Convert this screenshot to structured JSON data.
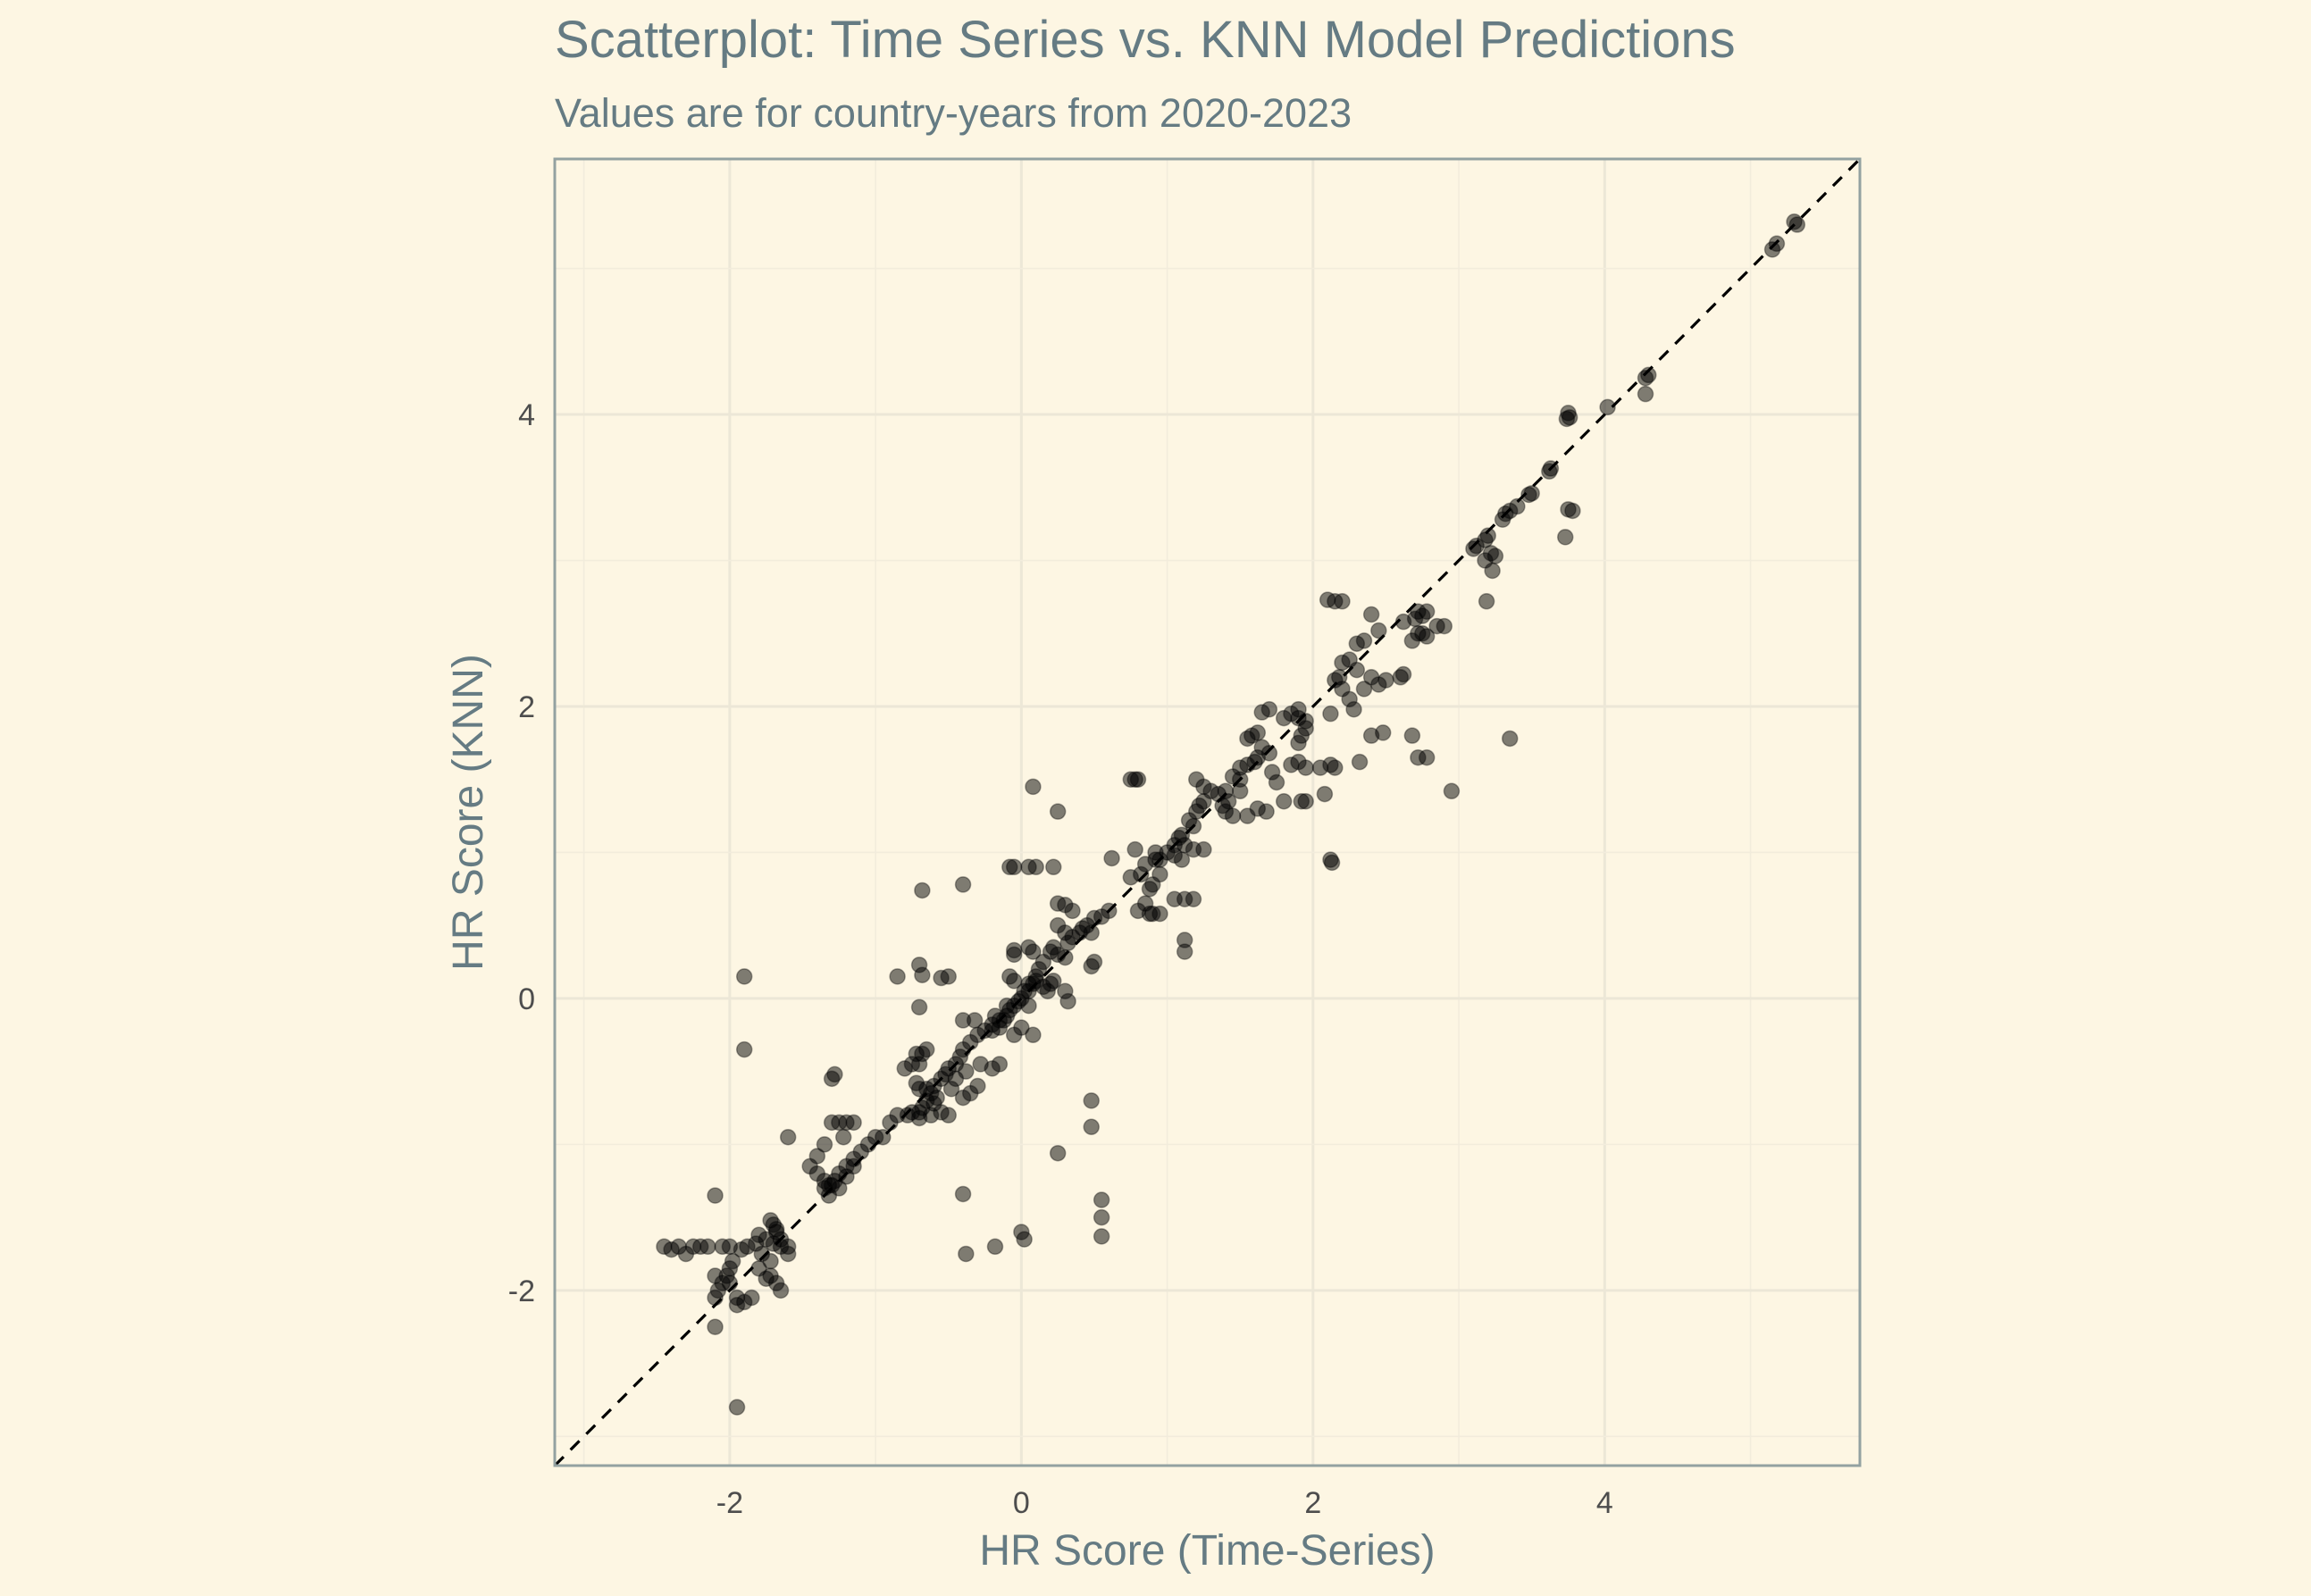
{
  "chart_data": {
    "type": "scatter",
    "title": "Scatterplot: Time Series vs. KNN Model Predictions",
    "subtitle": "Values are for country-years from 2020-2023",
    "xlabel": "HR Score (Time-Series)",
    "ylabel": "HR Score (KNN)",
    "xlim": [
      -3.2,
      5.75
    ],
    "ylim": [
      -3.2,
      5.75
    ],
    "x_ticks": [
      -2,
      0,
      2,
      4
    ],
    "y_ticks": [
      -2,
      0,
      2,
      4
    ],
    "x_tick_labels": [
      "-2",
      "0",
      "2",
      "4"
    ],
    "y_tick_labels": [
      "-2",
      "0",
      "2",
      "4"
    ],
    "reference_line": "y = x (dashed)",
    "grid": true,
    "legend": "none",
    "point_color": "#000000",
    "point_alpha": 0.5,
    "points": [
      [
        5.3,
        5.32
      ],
      [
        5.32,
        5.3
      ],
      [
        5.15,
        5.13
      ],
      [
        5.18,
        5.17
      ],
      [
        4.3,
        4.27
      ],
      [
        4.28,
        4.25
      ],
      [
        4.28,
        4.14
      ],
      [
        4.02,
        4.05
      ],
      [
        3.75,
        4.01
      ],
      [
        3.76,
        3.98
      ],
      [
        3.74,
        3.97
      ],
      [
        3.63,
        3.63
      ],
      [
        3.62,
        3.61
      ],
      [
        3.5,
        3.46
      ],
      [
        3.48,
        3.45
      ],
      [
        3.4,
        3.37
      ],
      [
        3.35,
        3.34
      ],
      [
        3.32,
        3.32
      ],
      [
        3.3,
        3.28
      ],
      [
        3.75,
        3.35
      ],
      [
        3.78,
        3.34
      ],
      [
        3.73,
        3.16
      ],
      [
        3.2,
        3.17
      ],
      [
        3.18,
        3.14
      ],
      [
        3.12,
        3.1
      ],
      [
        3.1,
        3.08
      ],
      [
        3.22,
        3.05
      ],
      [
        3.25,
        3.03
      ],
      [
        3.18,
        3.0
      ],
      [
        3.23,
        2.93
      ],
      [
        3.19,
        2.72
      ],
      [
        2.72,
        2.65
      ],
      [
        2.78,
        2.65
      ],
      [
        2.75,
        2.62
      ],
      [
        2.7,
        2.6
      ],
      [
        2.62,
        2.58
      ],
      [
        2.85,
        2.55
      ],
      [
        2.9,
        2.55
      ],
      [
        2.4,
        2.63
      ],
      [
        2.45,
        2.52
      ],
      [
        2.35,
        2.45
      ],
      [
        2.3,
        2.43
      ],
      [
        2.72,
        2.5
      ],
      [
        2.75,
        2.5
      ],
      [
        2.78,
        2.48
      ],
      [
        2.1,
        2.73
      ],
      [
        2.15,
        2.72
      ],
      [
        2.2,
        2.72
      ],
      [
        2.68,
        2.45
      ],
      [
        2.62,
        2.22
      ],
      [
        2.6,
        2.2
      ],
      [
        2.2,
        2.3
      ],
      [
        2.25,
        2.32
      ],
      [
        2.18,
        2.2
      ],
      [
        2.15,
        2.18
      ],
      [
        2.3,
        2.25
      ],
      [
        2.4,
        2.2
      ],
      [
        2.5,
        2.18
      ],
      [
        2.2,
        2.12
      ],
      [
        2.25,
        2.05
      ],
      [
        2.28,
        1.98
      ],
      [
        2.35,
        2.12
      ],
      [
        2.45,
        2.15
      ],
      [
        2.12,
        1.95
      ],
      [
        2.4,
        1.8
      ],
      [
        2.48,
        1.82
      ],
      [
        2.68,
        1.8
      ],
      [
        2.72,
        1.65
      ],
      [
        2.78,
        1.65
      ],
      [
        2.95,
        1.42
      ],
      [
        3.35,
        1.78
      ],
      [
        2.32,
        1.62
      ],
      [
        2.12,
        1.6
      ],
      [
        2.15,
        1.58
      ],
      [
        2.05,
        1.58
      ],
      [
        2.08,
        1.4
      ],
      [
        2.12,
        0.95
      ],
      [
        2.13,
        0.93
      ],
      [
        1.9,
        1.98
      ],
      [
        1.85,
        1.95
      ],
      [
        1.9,
        1.92
      ],
      [
        1.7,
        1.98
      ],
      [
        1.65,
        1.96
      ],
      [
        1.8,
        1.92
      ],
      [
        1.95,
        1.9
      ],
      [
        1.95,
        1.85
      ],
      [
        1.92,
        1.8
      ],
      [
        1.9,
        1.75
      ],
      [
        1.62,
        1.82
      ],
      [
        1.58,
        1.8
      ],
      [
        1.55,
        1.78
      ],
      [
        1.65,
        1.72
      ],
      [
        1.7,
        1.68
      ],
      [
        1.62,
        1.65
      ],
      [
        1.6,
        1.62
      ],
      [
        1.55,
        1.6
      ],
      [
        1.5,
        1.58
      ],
      [
        1.45,
        1.52
      ],
      [
        1.5,
        1.5
      ],
      [
        1.85,
        1.6
      ],
      [
        1.9,
        1.62
      ],
      [
        1.95,
        1.58
      ],
      [
        1.72,
        1.55
      ],
      [
        1.75,
        1.48
      ],
      [
        1.8,
        1.35
      ],
      [
        1.92,
        1.35
      ],
      [
        1.95,
        1.35
      ],
      [
        1.62,
        1.3
      ],
      [
        1.68,
        1.28
      ],
      [
        1.5,
        1.42
      ],
      [
        1.4,
        1.42
      ],
      [
        1.35,
        1.4
      ],
      [
        1.42,
        1.35
      ],
      [
        1.38,
        1.32
      ],
      [
        1.4,
        1.28
      ],
      [
        1.45,
        1.25
      ],
      [
        1.55,
        1.25
      ],
      [
        1.25,
        1.35
      ],
      [
        1.22,
        1.32
      ],
      [
        1.2,
        1.5
      ],
      [
        1.25,
        1.45
      ],
      [
        1.3,
        1.42
      ],
      [
        1.2,
        1.28
      ],
      [
        1.15,
        1.22
      ],
      [
        1.18,
        1.18
      ],
      [
        1.1,
        1.12
      ],
      [
        1.08,
        1.1
      ],
      [
        1.12,
        1.05
      ],
      [
        1.05,
        1.05
      ],
      [
        1.0,
        1.0
      ],
      [
        1.05,
        0.98
      ],
      [
        1.1,
        0.95
      ],
      [
        1.18,
        1.02
      ],
      [
        1.25,
        1.02
      ],
      [
        0.95,
        0.95
      ],
      [
        0.92,
        1.0
      ],
      [
        0.85,
        0.92
      ],
      [
        0.82,
        0.85
      ],
      [
        0.9,
        0.78
      ],
      [
        0.75,
        1.5
      ],
      [
        0.78,
        1.5
      ],
      [
        0.8,
        1.5
      ],
      [
        0.78,
        1.02
      ],
      [
        0.92,
        0.95
      ],
      [
        0.95,
        0.85
      ],
      [
        0.88,
        0.75
      ],
      [
        0.85,
        0.65
      ],
      [
        0.8,
        0.6
      ],
      [
        0.88,
        0.58
      ],
      [
        0.9,
        0.58
      ],
      [
        0.95,
        0.58
      ],
      [
        1.05,
        0.68
      ],
      [
        1.12,
        0.68
      ],
      [
        1.18,
        0.68
      ],
      [
        1.12,
        0.4
      ],
      [
        1.12,
        0.32
      ],
      [
        0.75,
        0.83
      ],
      [
        0.62,
        0.96
      ],
      [
        0.6,
        0.6
      ],
      [
        0.55,
        0.56
      ],
      [
        0.5,
        0.55
      ],
      [
        0.45,
        0.5
      ],
      [
        0.42,
        0.48
      ],
      [
        0.4,
        0.45
      ],
      [
        0.35,
        0.42
      ],
      [
        0.32,
        0.38
      ],
      [
        0.3,
        0.45
      ],
      [
        0.25,
        0.5
      ],
      [
        0.25,
        0.65
      ],
      [
        0.3,
        0.64
      ],
      [
        0.35,
        0.6
      ],
      [
        0.48,
        0.45
      ],
      [
        0.5,
        0.25
      ],
      [
        0.48,
        0.22
      ],
      [
        0.22,
        0.35
      ],
      [
        0.2,
        0.32
      ],
      [
        0.15,
        0.25
      ],
      [
        0.12,
        0.2
      ],
      [
        0.1,
        0.15
      ],
      [
        0.08,
        0.1
      ],
      [
        0.05,
        0.05
      ],
      [
        0.0,
        0.0
      ],
      [
        -0.02,
        -0.02
      ],
      [
        -0.05,
        -0.05
      ],
      [
        -0.08,
        -0.08
      ],
      [
        -0.1,
        -0.12
      ],
      [
        -0.12,
        -0.15
      ],
      [
        0.02,
        0.05
      ],
      [
        0.05,
        0.1
      ],
      [
        -0.05,
        0.12
      ],
      [
        -0.08,
        0.15
      ],
      [
        0.1,
        0.12
      ],
      [
        0.15,
        0.08
      ],
      [
        0.2,
        0.1
      ],
      [
        0.18,
        0.05
      ],
      [
        0.22,
        0.12
      ],
      [
        0.3,
        0.05
      ],
      [
        0.32,
        -0.02
      ],
      [
        0.05,
        -0.05
      ],
      [
        0.08,
        -0.25
      ],
      [
        -0.05,
        0.3
      ],
      [
        -0.05,
        0.33
      ],
      [
        0.05,
        0.35
      ],
      [
        0.08,
        0.32
      ],
      [
        0.25,
        0.3
      ],
      [
        0.3,
        0.28
      ],
      [
        -0.08,
        0.9
      ],
      [
        -0.05,
        0.9
      ],
      [
        0.05,
        0.9
      ],
      [
        0.1,
        0.9
      ],
      [
        0.08,
        1.45
      ],
      [
        0.25,
        1.28
      ],
      [
        0.22,
        0.9
      ],
      [
        -0.4,
        0.78
      ],
      [
        -0.68,
        0.74
      ],
      [
        -0.7,
        0.23
      ],
      [
        -0.68,
        0.16
      ],
      [
        -0.85,
        0.15
      ],
      [
        -0.55,
        0.14
      ],
      [
        -0.5,
        0.15
      ],
      [
        -0.7,
        -0.06
      ],
      [
        -0.15,
        -0.15
      ],
      [
        -0.2,
        -0.18
      ],
      [
        -0.25,
        -0.22
      ],
      [
        -0.3,
        -0.25
      ],
      [
        -0.35,
        -0.3
      ],
      [
        -0.4,
        -0.35
      ],
      [
        -0.42,
        -0.4
      ],
      [
        -0.45,
        -0.45
      ],
      [
        -0.5,
        -0.48
      ],
      [
        -0.52,
        -0.52
      ],
      [
        -0.55,
        -0.55
      ],
      [
        -0.6,
        -0.6
      ],
      [
        -0.62,
        -0.65
      ],
      [
        -0.65,
        -0.7
      ],
      [
        -0.68,
        -0.75
      ],
      [
        -0.7,
        -0.78
      ],
      [
        -0.4,
        -0.15
      ],
      [
        -0.32,
        -0.15
      ],
      [
        -0.2,
        -0.22
      ],
      [
        -0.15,
        -0.45
      ],
      [
        -0.2,
        -0.48
      ],
      [
        -0.28,
        -0.45
      ],
      [
        -0.38,
        -0.5
      ],
      [
        -0.45,
        -0.55
      ],
      [
        -0.48,
        -0.62
      ],
      [
        -0.4,
        -0.68
      ],
      [
        -0.35,
        -0.65
      ],
      [
        -0.3,
        -0.6
      ],
      [
        -0.72,
        -0.38
      ],
      [
        -0.7,
        -0.45
      ],
      [
        -0.75,
        -0.45
      ],
      [
        -0.8,
        -0.48
      ],
      [
        -0.72,
        -0.58
      ],
      [
        -0.65,
        -0.62
      ],
      [
        -0.62,
        -0.8
      ],
      [
        -0.7,
        -0.82
      ],
      [
        -0.75,
        -0.78
      ],
      [
        -0.55,
        -0.78
      ],
      [
        -0.5,
        -0.8
      ],
      [
        -0.78,
        -0.8
      ],
      [
        -0.05,
        -0.25
      ],
      [
        0.0,
        -0.2
      ],
      [
        -0.15,
        -0.2
      ],
      [
        -0.18,
        -0.12
      ],
      [
        -0.1,
        -0.05
      ],
      [
        -0.85,
        -0.8
      ],
      [
        -0.9,
        -0.85
      ],
      [
        -0.95,
        -0.95
      ],
      [
        -1.0,
        -0.95
      ],
      [
        -1.05,
        -1.0
      ],
      [
        -1.1,
        -1.05
      ],
      [
        -1.15,
        -1.1
      ],
      [
        -1.2,
        -1.15
      ],
      [
        -1.25,
        -1.2
      ],
      [
        -1.28,
        -1.25
      ],
      [
        -1.3,
        -1.28
      ],
      [
        -1.35,
        -1.3
      ],
      [
        -1.32,
        -1.35
      ],
      [
        -1.25,
        -0.85
      ],
      [
        -1.2,
        -0.85
      ],
      [
        -1.15,
        -0.85
      ],
      [
        -1.3,
        -0.85
      ],
      [
        -1.22,
        -0.95
      ],
      [
        -1.3,
        -0.55
      ],
      [
        -1.28,
        -0.52
      ],
      [
        -1.35,
        -1.0
      ],
      [
        -1.4,
        -1.08
      ],
      [
        -1.45,
        -1.15
      ],
      [
        -1.4,
        -1.2
      ],
      [
        -1.35,
        -1.25
      ],
      [
        -1.32,
        -1.28
      ],
      [
        -1.25,
        -1.3
      ],
      [
        -1.2,
        -1.22
      ],
      [
        -1.15,
        -1.15
      ],
      [
        -1.6,
        -0.95
      ],
      [
        -1.65,
        -1.7
      ],
      [
        -1.7,
        -1.68
      ],
      [
        -1.75,
        -1.65
      ],
      [
        -1.8,
        -1.62
      ],
      [
        -1.82,
        -1.68
      ],
      [
        -1.78,
        -1.75
      ],
      [
        -1.72,
        -1.8
      ],
      [
        -1.68,
        -1.58
      ],
      [
        -1.7,
        -1.55
      ],
      [
        -1.72,
        -1.52
      ],
      [
        -1.68,
        -1.6
      ],
      [
        -1.88,
        -1.7
      ],
      [
        -1.92,
        -1.72
      ],
      [
        -1.98,
        -1.8
      ],
      [
        -2.0,
        -1.85
      ],
      [
        -2.02,
        -1.9
      ],
      [
        -2.0,
        -1.95
      ],
      [
        -2.05,
        -1.95
      ],
      [
        -2.08,
        -2.0
      ],
      [
        -2.1,
        -2.05
      ],
      [
        -2.1,
        -2.25
      ],
      [
        -1.95,
        -2.1
      ],
      [
        -1.9,
        -2.08
      ],
      [
        -1.85,
        -2.05
      ],
      [
        -1.95,
        -2.05
      ],
      [
        -1.8,
        -1.85
      ],
      [
        -1.75,
        -1.92
      ],
      [
        -1.72,
        -1.9
      ],
      [
        -1.68,
        -1.95
      ],
      [
        -1.65,
        -2.0
      ],
      [
        -1.6,
        -1.75
      ],
      [
        -1.6,
        -1.7
      ],
      [
        -1.65,
        -1.65
      ],
      [
        -2.45,
        -1.7
      ],
      [
        -2.4,
        -1.72
      ],
      [
        -2.35,
        -1.7
      ],
      [
        -2.3,
        -1.75
      ],
      [
        -2.25,
        -1.7
      ],
      [
        -2.2,
        -1.7
      ],
      [
        -2.15,
        -1.7
      ],
      [
        -2.05,
        -1.7
      ],
      [
        -2.0,
        -1.7
      ],
      [
        -2.1,
        -1.9
      ],
      [
        -2.1,
        -1.35
      ],
      [
        -1.95,
        -2.8
      ],
      [
        -1.9,
        0.15
      ],
      [
        -1.9,
        -0.35
      ],
      [
        -0.4,
        -1.34
      ],
      [
        -0.38,
        -1.75
      ],
      [
        -0.18,
        -1.7
      ],
      [
        0.0,
        -1.6
      ],
      [
        0.02,
        -1.65
      ],
      [
        0.25,
        -1.06
      ],
      [
        0.48,
        -0.7
      ],
      [
        0.48,
        -0.88
      ],
      [
        0.55,
        -1.38
      ],
      [
        0.55,
        -1.5
      ],
      [
        0.55,
        -1.63
      ],
      [
        -0.7,
        -0.62
      ],
      [
        -0.68,
        -0.38
      ],
      [
        -0.65,
        -0.35
      ],
      [
        -0.6,
        -0.72
      ],
      [
        -0.58,
        -0.68
      ]
    ]
  }
}
